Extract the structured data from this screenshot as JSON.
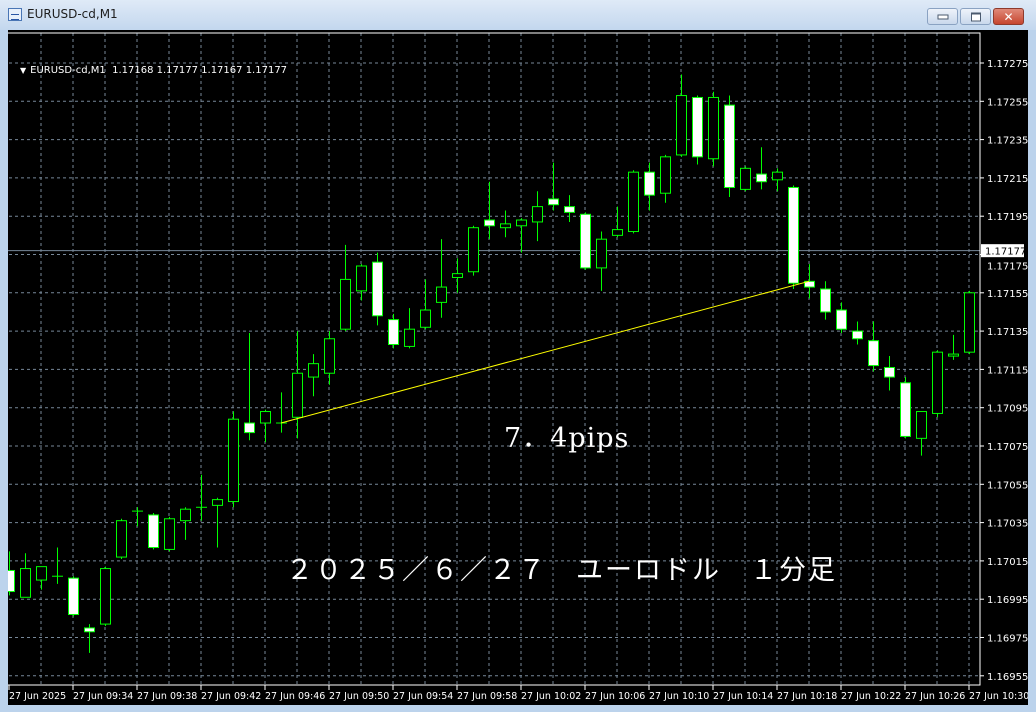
{
  "window": {
    "title": "EURUSD-cd,M1",
    "icon": "chart-window-icon",
    "buttons": [
      "minimize",
      "restore",
      "close"
    ]
  },
  "header": {
    "symbol": "EURUSD-cd,M1",
    "ohlc_text": "1.17168 1.17177 1.17167 1.17177"
  },
  "annotations": {
    "pips": "7．4pips",
    "caption": "２０２５／６／２７　ユーロドル　１分足"
  },
  "colors": {
    "background": "#000000",
    "bull_fill": "#000000",
    "bear_fill": "#ffffff",
    "candle_stroke": "#00ff00",
    "grid": "#778899",
    "trendline": "#ffff00",
    "price_line": "#778899",
    "text": "#ffffff"
  },
  "chart_data": {
    "type": "candlestick",
    "symbol": "EURUSD-cd",
    "timeframe": "M1",
    "grid": true,
    "ylim": [
      1.16945,
      1.17285
    ],
    "y_ticks": [
      "1.17275",
      "1.17255",
      "1.17235",
      "1.17215",
      "1.17195",
      "1.17175",
      "1.17155",
      "1.17135",
      "1.17115",
      "1.17095",
      "1.17075",
      "1.17055",
      "1.17035",
      "1.17015",
      "1.16995",
      "1.16975",
      "1.16955"
    ],
    "x_ticks": [
      "27 Jun 2025",
      "27 Jun 09:34",
      "27 Jun 09:38",
      "27 Jun 09:42",
      "27 Jun 09:46",
      "27 Jun 09:50",
      "27 Jun 09:54",
      "27 Jun 09:58",
      "27 Jun 10:02",
      "27 Jun 10:06",
      "27 Jun 10:10",
      "27 Jun 10:14",
      "27 Jun 10:18",
      "27 Jun 10:22",
      "27 Jun 10:26",
      "27 Jun 10:30"
    ],
    "current_price": "1.17177",
    "times": [
      "09:30",
      "09:31",
      "09:32",
      "09:33",
      "09:34",
      "09:35",
      "09:36",
      "09:37",
      "09:38",
      "09:39",
      "09:40",
      "09:41",
      "09:42",
      "09:43",
      "09:44",
      "09:45",
      "09:46",
      "09:47",
      "09:48",
      "09:49",
      "09:50",
      "09:51",
      "09:52",
      "09:53",
      "09:54",
      "09:55",
      "09:56",
      "09:57",
      "09:58",
      "09:59",
      "10:00",
      "10:01",
      "10:02",
      "10:03",
      "10:04",
      "10:05",
      "10:06",
      "10:07",
      "10:08",
      "10:09",
      "10:10",
      "10:11",
      "10:12",
      "10:13",
      "10:14",
      "10:15",
      "10:16",
      "10:17",
      "10:18",
      "10:19",
      "10:20",
      "10:21",
      "10:22",
      "10:23",
      "10:24",
      "10:25",
      "10:26",
      "10:27",
      "10:28",
      "10:29",
      "10:30"
    ],
    "ohlc_fields": [
      "open",
      "high",
      "low",
      "close"
    ],
    "ohlc": [
      [
        1.1701,
        1.1702,
        1.16997,
        1.16999
      ],
      [
        1.16996,
        1.17019,
        1.16996,
        1.17011
      ],
      [
        1.17005,
        1.17012,
        1.17,
        1.17012
      ],
      [
        1.17007,
        1.17022,
        1.17003,
        1.17007
      ],
      [
        1.17006,
        1.17007,
        1.16986,
        1.16987
      ],
      [
        1.1698,
        1.16982,
        1.16967,
        1.16978
      ],
      [
        1.16982,
        1.17012,
        1.16981,
        1.17011
      ],
      [
        1.17017,
        1.17037,
        1.17016,
        1.17036
      ],
      [
        1.17041,
        1.17043,
        1.17033,
        1.17041
      ],
      [
        1.17039,
        1.1704,
        1.17021,
        1.17022
      ],
      [
        1.17021,
        1.17038,
        1.1702,
        1.17037
      ],
      [
        1.17036,
        1.17043,
        1.17026,
        1.17042
      ],
      [
        1.17043,
        1.1706,
        1.17036,
        1.17043
      ],
      [
        1.17044,
        1.17048,
        1.17022,
        1.17047
      ],
      [
        1.17046,
        1.17093,
        1.17043,
        1.17089
      ],
      [
        1.17087,
        1.17134,
        1.17078,
        1.17082
      ],
      [
        1.17087,
        1.17094,
        1.17077,
        1.17093
      ],
      [
        1.17087,
        1.17103,
        1.17082,
        1.17087
      ],
      [
        1.1709,
        1.17135,
        1.17079,
        1.17113
      ],
      [
        1.17111,
        1.17123,
        1.17101,
        1.17118
      ],
      [
        1.17113,
        1.17135,
        1.17107,
        1.17131
      ],
      [
        1.17136,
        1.1718,
        1.17135,
        1.17162
      ],
      [
        1.17156,
        1.1717,
        1.17151,
        1.17169
      ],
      [
        1.17171,
        1.17176,
        1.17138,
        1.17143
      ],
      [
        1.17141,
        1.17144,
        1.17126,
        1.17128
      ],
      [
        1.17127,
        1.17147,
        1.17126,
        1.17136
      ],
      [
        1.17137,
        1.17162,
        1.17136,
        1.17146
      ],
      [
        1.1715,
        1.17183,
        1.17142,
        1.17158
      ],
      [
        1.17163,
        1.17173,
        1.17155,
        1.17165
      ],
      [
        1.17166,
        1.1719,
        1.17164,
        1.17189
      ],
      [
        1.17193,
        1.17213,
        1.17183,
        1.1719
      ],
      [
        1.17189,
        1.17198,
        1.17184,
        1.17191
      ],
      [
        1.1719,
        1.17194,
        1.17176,
        1.17193
      ],
      [
        1.17192,
        1.17208,
        1.17182,
        1.172
      ],
      [
        1.17204,
        1.17223,
        1.17198,
        1.17201
      ],
      [
        1.172,
        1.17206,
        1.17192,
        1.17197
      ],
      [
        1.17196,
        1.17197,
        1.17167,
        1.17168
      ],
      [
        1.17168,
        1.17187,
        1.17156,
        1.17183
      ],
      [
        1.17185,
        1.172,
        1.17184,
        1.17188
      ],
      [
        1.17187,
        1.17219,
        1.17186,
        1.17218
      ],
      [
        1.17218,
        1.17223,
        1.17198,
        1.17206
      ],
      [
        1.17207,
        1.17227,
        1.17202,
        1.17226
      ],
      [
        1.17227,
        1.17269,
        1.17226,
        1.17258
      ],
      [
        1.17257,
        1.17258,
        1.17222,
        1.17226
      ],
      [
        1.17225,
        1.1726,
        1.17221,
        1.17257
      ],
      [
        1.17253,
        1.17258,
        1.17205,
        1.1721
      ],
      [
        1.17209,
        1.17221,
        1.17208,
        1.1722
      ],
      [
        1.17217,
        1.17231,
        1.17209,
        1.17213
      ],
      [
        1.17214,
        1.1722,
        1.17208,
        1.17218
      ],
      [
        1.1721,
        1.17211,
        1.17157,
        1.1716
      ],
      [
        1.17161,
        1.1717,
        1.17152,
        1.17158
      ],
      [
        1.17157,
        1.17161,
        1.17141,
        1.17145
      ],
      [
        1.17146,
        1.1715,
        1.17134,
        1.17136
      ],
      [
        1.17135,
        1.1714,
        1.17128,
        1.17131
      ],
      [
        1.1713,
        1.1714,
        1.17114,
        1.17117
      ],
      [
        1.17116,
        1.17122,
        1.17104,
        1.17111
      ],
      [
        1.17108,
        1.17111,
        1.17079,
        1.1708
      ],
      [
        1.17079,
        1.17093,
        1.1707,
        1.17093
      ],
      [
        1.17092,
        1.17125,
        1.1709,
        1.17124
      ],
      [
        1.17122,
        1.17133,
        1.1712,
        1.17123
      ],
      [
        1.17124,
        1.17156,
        1.17123,
        1.17155
      ]
    ],
    "trendline": {
      "from": {
        "time": "09:47",
        "price": 1.17087
      },
      "to": {
        "time": "10:20",
        "price": 1.17161
      }
    }
  }
}
